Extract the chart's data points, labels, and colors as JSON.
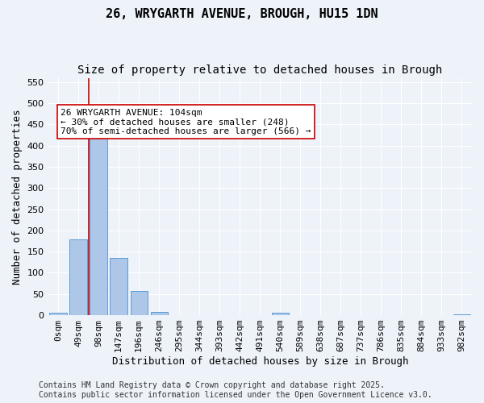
{
  "title1": "26, WRYGARTH AVENUE, BROUGH, HU15 1DN",
  "title2": "Size of property relative to detached houses in Brough",
  "xlabel": "Distribution of detached houses by size in Brough",
  "ylabel": "Number of detached properties",
  "categories": [
    "0sqm",
    "49sqm",
    "98sqm",
    "147sqm",
    "196sqm",
    "246sqm",
    "295sqm",
    "344sqm",
    "393sqm",
    "442sqm",
    "491sqm",
    "540sqm",
    "589sqm",
    "638sqm",
    "687sqm",
    "737sqm",
    "786sqm",
    "835sqm",
    "884sqm",
    "933sqm",
    "982sqm"
  ],
  "values": [
    5,
    178,
    428,
    136,
    58,
    7,
    0,
    0,
    0,
    0,
    0,
    5,
    0,
    0,
    0,
    0,
    0,
    0,
    0,
    0,
    3
  ],
  "bar_color": "#aec6e8",
  "bar_edge_color": "#5b9bd5",
  "annotation_text": "26 WRYGARTH AVENUE: 104sqm\n← 30% of detached houses are smaller (248)\n70% of semi-detached houses are larger (566) →",
  "annotation_box_color": "#ffffff",
  "annotation_box_edge_color": "#cc0000",
  "vline_x": 1.5,
  "vline_color": "#cc0000",
  "ylim": [
    0,
    560
  ],
  "yticks": [
    0,
    50,
    100,
    150,
    200,
    250,
    300,
    350,
    400,
    450,
    500,
    550
  ],
  "bg_color": "#eef3fa",
  "grid_color": "#ffffff",
  "footer": "Contains HM Land Registry data © Crown copyright and database right 2025.\nContains public sector information licensed under the Open Government Licence v3.0.",
  "title1_fontsize": 11,
  "title2_fontsize": 10,
  "xlabel_fontsize": 9,
  "ylabel_fontsize": 9,
  "tick_fontsize": 8,
  "annotation_fontsize": 8,
  "footer_fontsize": 7
}
